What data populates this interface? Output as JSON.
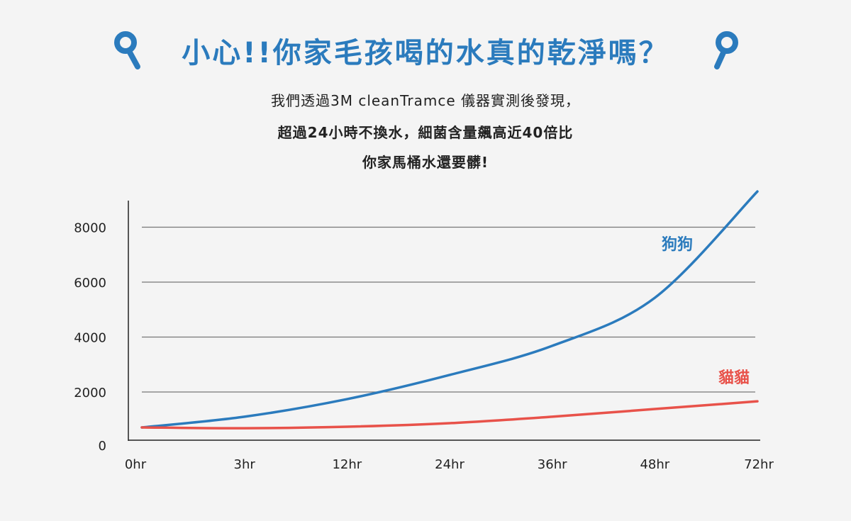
{
  "header": {
    "title": "小心!!你家毛孩喝的水真的乾淨嗎？",
    "left_icon": "map-pin-icon",
    "right_icon": "map-pin-icon",
    "accent_color": "#2b7bbd"
  },
  "subtitle": {
    "line1": "我們透過3M cleanTramce 儀器實測後發現，",
    "line2": "超過24小時不換水，細菌含量飆高近40倍比",
    "line3": "你家馬桶水還要髒!"
  },
  "chart_data": {
    "type": "line",
    "categories": [
      "0hr",
      "3hr",
      "12hr",
      "24hr",
      "36hr",
      "48hr",
      "72hr"
    ],
    "ylim": [
      0,
      9000
    ],
    "yticks": [
      0,
      2000,
      4000,
      6000,
      8000
    ],
    "grid": true,
    "series": [
      {
        "name": "狗狗",
        "color": "#2b7bbd",
        "values": [
          710,
          1100,
          1740,
          2620,
          3680,
          5430,
          9300
        ]
      },
      {
        "name": "貓貓",
        "color": "#e8524a",
        "values": [
          710,
          680,
          735,
          865,
          1100,
          1380,
          1660
        ]
      }
    ]
  }
}
